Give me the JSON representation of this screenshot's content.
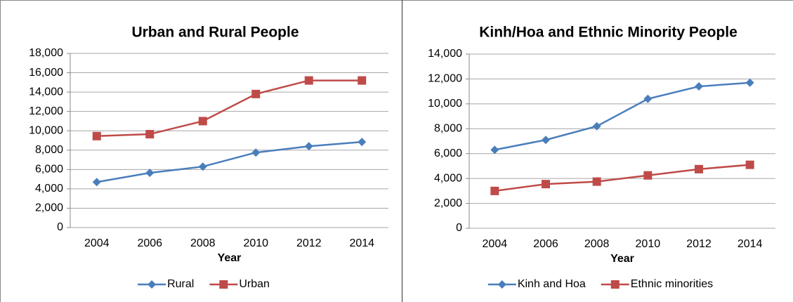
{
  "chart_data": [
    {
      "type": "line",
      "title": "Urban and Rural People",
      "x_label": "Year",
      "categories": [
        "2004",
        "2006",
        "2008",
        "2010",
        "2012",
        "2014"
      ],
      "series": [
        {
          "name": "Rural",
          "color": "#4a7ebb",
          "marker": "diamond",
          "values": [
            4700,
            5650,
            6300,
            7750,
            8400,
            8850
          ]
        },
        {
          "name": "Urban",
          "color": "#be4b48",
          "marker": "square",
          "values": [
            9450,
            9650,
            11000,
            13800,
            15200,
            15200
          ]
        }
      ],
      "ylim": [
        0,
        18000
      ],
      "yticks": [
        0,
        {
          "value": 2000,
          "label": "2,000"
        },
        {
          "value": 4000,
          "label": "4,000"
        },
        {
          "value": 6000,
          "label": "6,000"
        },
        {
          "value": 8000,
          "label": "8,000"
        },
        {
          "value": 10000,
          "label": "10,000"
        },
        {
          "value": 12000,
          "label": "12,000"
        },
        {
          "value": 14000,
          "label": "14,000"
        },
        {
          "value": 16000,
          "label": "16,000"
        },
        {
          "value": 18000,
          "label": "18,000"
        }
      ],
      "grid": true,
      "legend": "bottom"
    },
    {
      "type": "line",
      "title": "Kinh/Hoa and Ethnic Minority People",
      "x_label": "Year",
      "categories": [
        "2004",
        "2006",
        "2008",
        "2010",
        "2012",
        "2014"
      ],
      "series": [
        {
          "name": "Kinh and Hoa",
          "color": "#4a7ebb",
          "marker": "diamond",
          "values": [
            6300,
            7100,
            8200,
            10400,
            11400,
            11700
          ]
        },
        {
          "name": "Ethnic minorities",
          "color": "#be4b48",
          "marker": "square",
          "values": [
            3000,
            3550,
            3750,
            4250,
            4750,
            5100
          ]
        }
      ],
      "ylim": [
        0,
        14000
      ],
      "yticks": [
        0,
        {
          "value": 2000,
          "label": "2,000"
        },
        {
          "value": 4000,
          "label": "4,000"
        },
        {
          "value": 6000,
          "label": "6,000"
        },
        {
          "value": 8000,
          "label": "8,000"
        },
        {
          "value": 10000,
          "label": "10,000"
        },
        {
          "value": 12000,
          "label": "12,000"
        },
        {
          "value": 14000,
          "label": "14,000"
        }
      ],
      "grid": true,
      "legend": "bottom"
    }
  ]
}
